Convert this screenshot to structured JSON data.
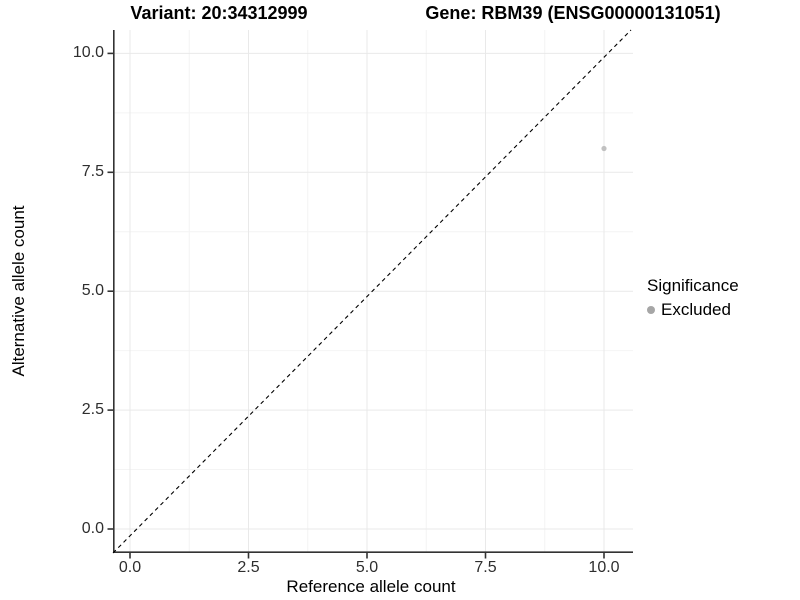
{
  "chart_data": {
    "type": "scatter",
    "title_left": "Variant: 20:34312999",
    "title_right": "Gene: RBM39 (ENSG00000131051)",
    "xlabel": "Reference allele count",
    "ylabel": "Alternative allele count",
    "x_ticks": {
      "values": [
        0,
        2.5,
        5,
        7.5,
        10
      ],
      "labels": [
        "0.0",
        "2.5",
        "5.0",
        "7.5",
        "10.0"
      ]
    },
    "y_ticks": {
      "values": [
        0,
        2.5,
        5,
        7.5,
        10
      ],
      "labels": [
        "0.0",
        "2.5",
        "5.0",
        "7.5",
        "10.0"
      ]
    },
    "xlim": [
      -0.4,
      10.6
    ],
    "ylim": [
      -0.5,
      10.5
    ],
    "grid": {
      "major": true,
      "minor": true
    },
    "reference_line": {
      "type": "abline",
      "slope": 1,
      "intercept": 0,
      "style": "dashed",
      "color": "#000000"
    },
    "series": [
      {
        "name": "Excluded",
        "color": "#c1c1c1",
        "points": [
          {
            "x": 10,
            "y": 8
          }
        ]
      }
    ],
    "legend": {
      "title": "Significance",
      "position": "right",
      "entries": [
        {
          "label": "Excluded",
          "color": "#a6a6a6"
        }
      ]
    }
  },
  "colors": {
    "background": "#ffffff",
    "axis_line": "#333333",
    "tick_mark": "#333333",
    "tick_label": "#2e2e2e",
    "grid_major": "#e9e9e9",
    "grid_minor": "#f4f4f4",
    "title_text": "#000000",
    "point_fill": "#c1c1c1",
    "legend_key_fill": "#a6a6a6"
  }
}
